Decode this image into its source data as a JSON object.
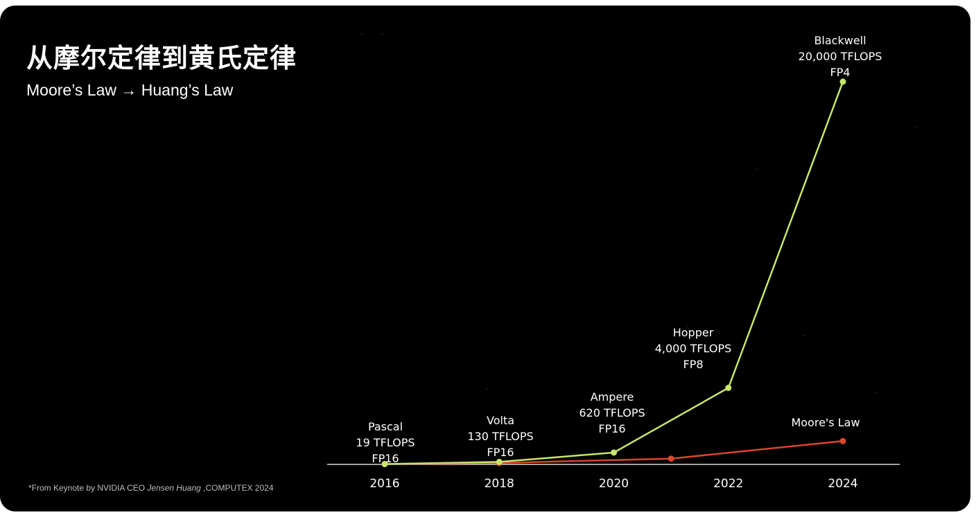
{
  "slide": {
    "title": "从摩尔定律到黄氏定律",
    "subtitle": "Moore’s Law → Huang’s Law",
    "footnote": {
      "prefix": "*From  Keynote by NVIDIA CEO ",
      "speaker": "Jensen Huang",
      "suffix": " ,COMPUTEX 2024"
    }
  },
  "chart_data": {
    "type": "line",
    "xlabel": "",
    "ylabel": "",
    "x_ticks": [
      "2016",
      "2018",
      "2020",
      "2022",
      "2024"
    ],
    "grid": false,
    "series": [
      {
        "name": "",
        "color": "#c7e66c",
        "points": [
          {
            "x": 2016,
            "y": 19,
            "label": [
              "Pascal",
              "19 TFLOPS",
              "FP16"
            ]
          },
          {
            "x": 2018,
            "y": 130,
            "label": [
              "Volta",
              "130 TFLOPS",
              "FP16"
            ]
          },
          {
            "x": 2020,
            "y": 620,
            "label": [
              "Ampere",
              "620 TFLOPS",
              "FP16"
            ]
          },
          {
            "x": 2022,
            "y": 4000,
            "label": [
              "Hopper",
              "4,000 TFLOPS",
              "FP8"
            ]
          },
          {
            "x": 2024,
            "y": 20000,
            "label": [
              "Blackwell",
              "20,000 TFLOPS",
              "FP4"
            ]
          }
        ]
      },
      {
        "name": "Moore's Law",
        "color": "#d9472b",
        "points": [
          {
            "x": 2016,
            "y": 19
          },
          {
            "x": 2018,
            "y": 76
          },
          {
            "x": 2021,
            "y": 300
          },
          {
            "x": 2024,
            "y": 1220
          }
        ]
      }
    ]
  }
}
